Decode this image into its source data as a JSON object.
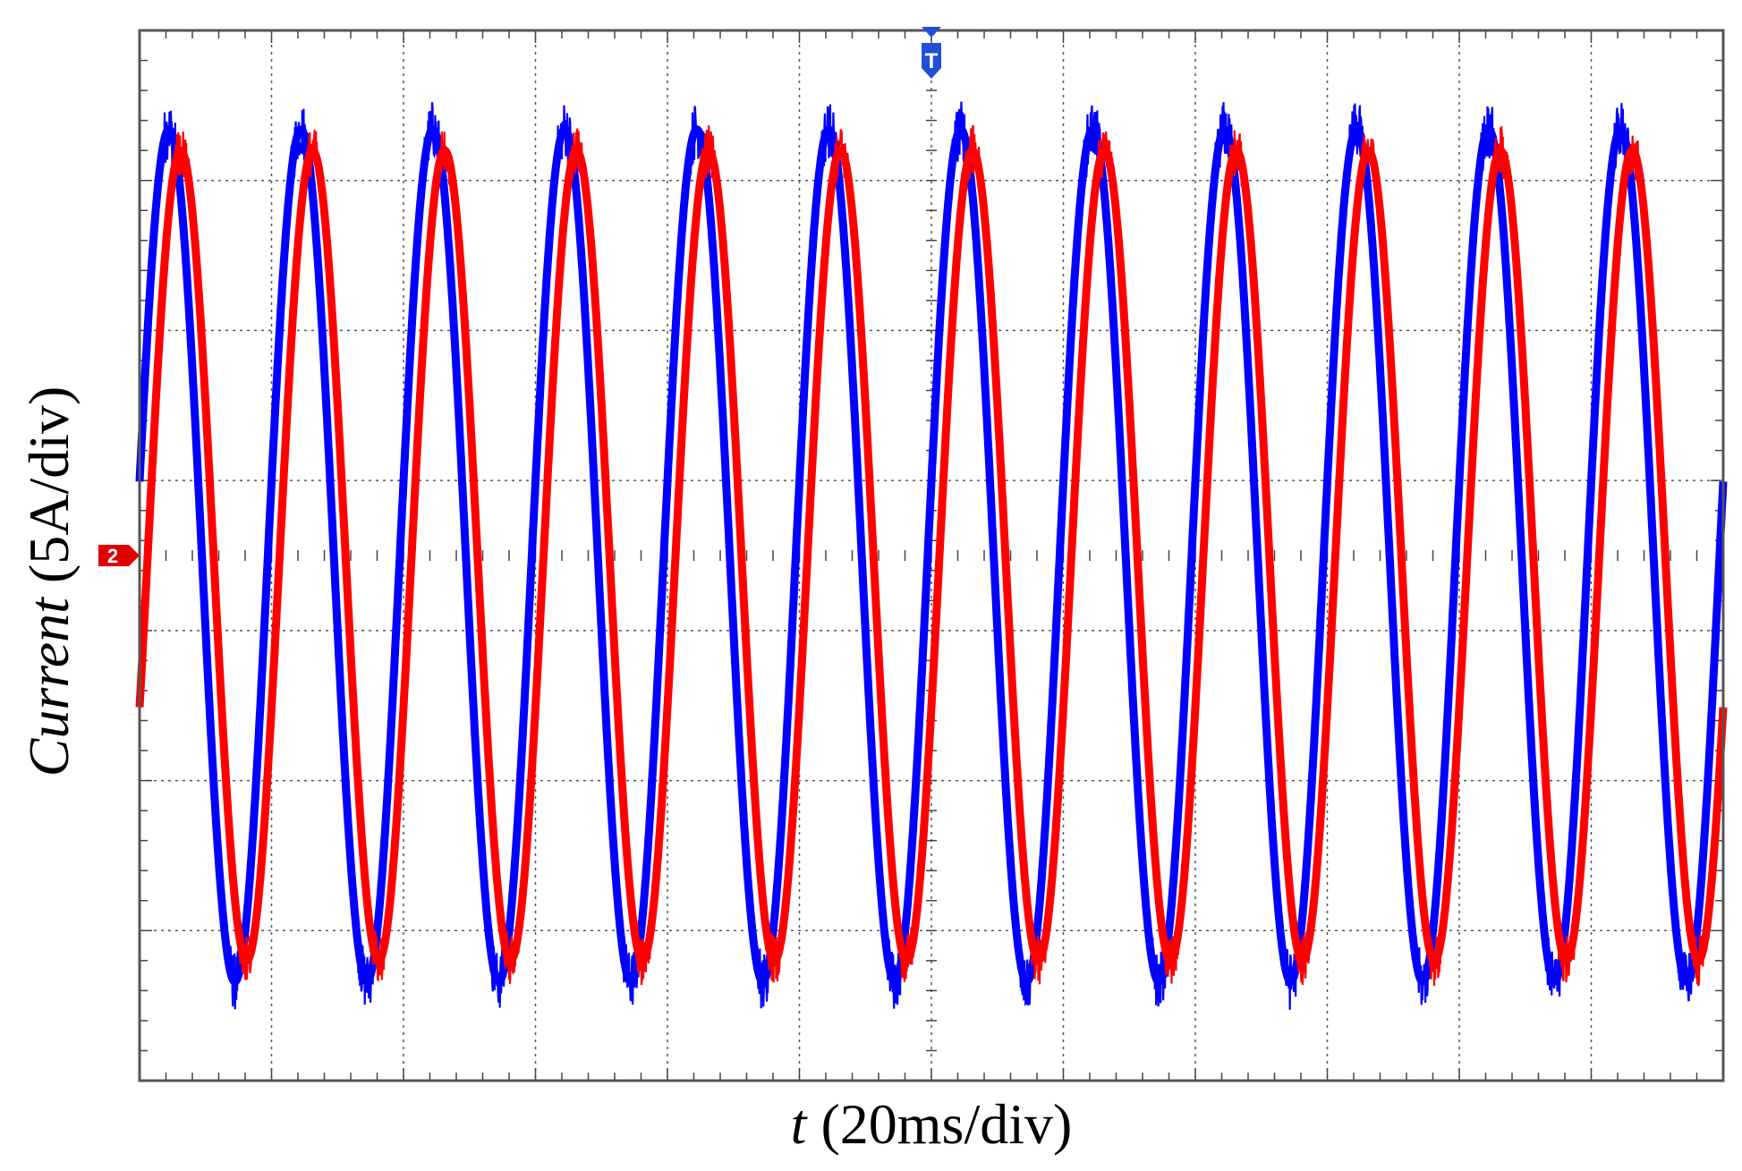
{
  "chart_data": {
    "type": "line",
    "title": "",
    "xlabel": {
      "var": "t",
      "unit": " (20ms/div)"
    },
    "ylabel": {
      "var": "Current",
      "unit": " (5A/div)"
    },
    "grid": true,
    "grid_divisions": {
      "x": 12,
      "y": 7
    },
    "x_per_div_ms": 20,
    "y_per_div_A": 5,
    "xlim_ms": [
      -120,
      120
    ],
    "ylim_A": [
      -17.5,
      17.5
    ],
    "trigger_marker": {
      "label": "T",
      "x_ms": 0,
      "color": "#1f4fd8"
    },
    "channel_marker": {
      "label": "2",
      "y_A": 0,
      "color": "#e00000"
    },
    "series": [
      {
        "color": "#0000ff",
        "amplitude_A": 14.2,
        "frequency_hz": 50,
        "phase_deg": 10,
        "noise_A": 0.7
      },
      {
        "color": "#ff0000",
        "amplitude_A": 13.5,
        "frequency_hz": 50,
        "phase_deg": -22,
        "noise_A": 0.6
      }
    ]
  }
}
